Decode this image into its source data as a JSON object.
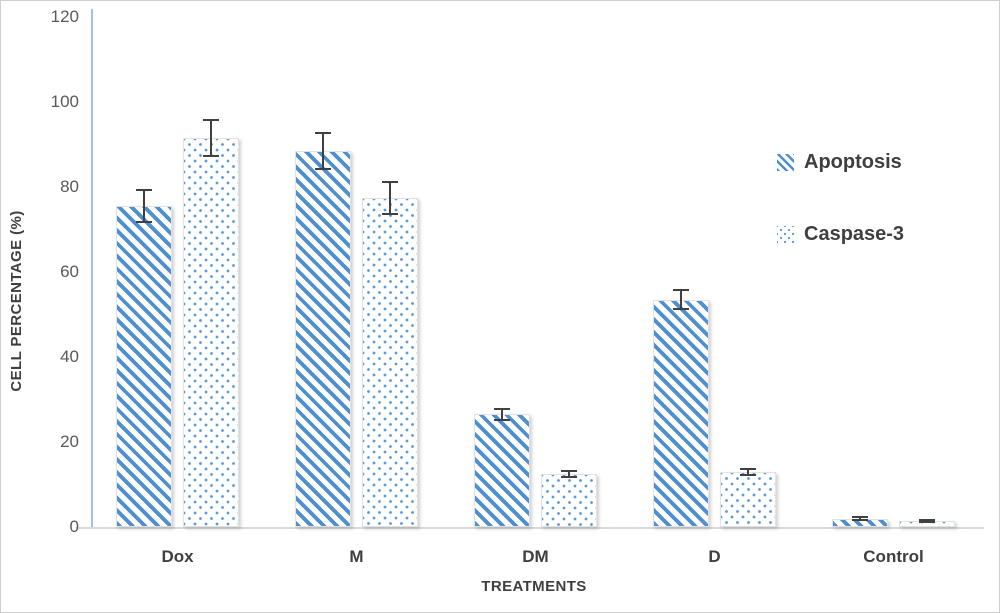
{
  "chart_data": {
    "type": "bar",
    "title": "",
    "xlabel": "TREATMENTS",
    "ylabel": "CELL PERCENTAGE (%)",
    "ylim": [
      0,
      120
    ],
    "yticks": [
      0,
      20,
      40,
      60,
      80,
      100,
      120
    ],
    "categories": [
      "Dox",
      "M",
      "DM",
      "D",
      "Control"
    ],
    "series": [
      {
        "name": "Apoptosis",
        "pattern": "diagonal-stripes",
        "values": [
          75.5,
          88.5,
          26.5,
          53.5,
          2
        ],
        "errors": [
          4,
          4.5,
          1.5,
          2.5,
          0.5
        ]
      },
      {
        "name": "Caspase-3",
        "pattern": "dots",
        "values": [
          91.5,
          77.5,
          12.5,
          13,
          1.5
        ],
        "errors": [
          4.5,
          4,
          1,
          1,
          0.5
        ]
      }
    ],
    "legend_position": "right",
    "grid": false
  },
  "colors": {
    "stripe_blue": "#4e8fd0",
    "dot_blue": "#5b9bd5",
    "y_axis_line_blue": "#9dc3e6",
    "x_axis_line_gray": "#d9d9d9",
    "bold_label_gray": "#3f3f3f",
    "tick_label_gray": "#595959",
    "error_bar_gray": "#404040",
    "background": "#ffffff"
  }
}
